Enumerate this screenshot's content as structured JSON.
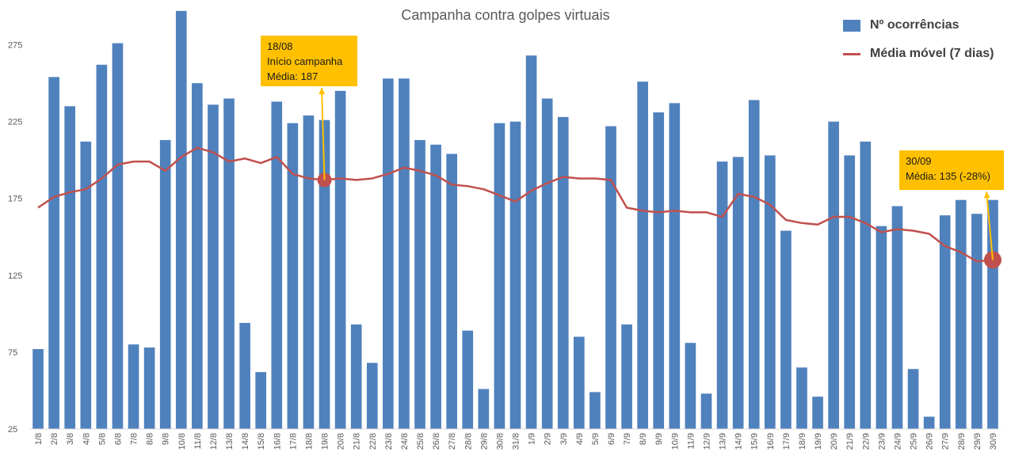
{
  "chart_data": {
    "type": "bar",
    "title": "Campanha contra golpes virtuais",
    "xlabel": "",
    "ylabel": "",
    "ylim": [
      25,
      300
    ],
    "yticks": [
      25,
      75,
      125,
      175,
      225,
      275
    ],
    "grid": false,
    "legend_position": "top-right",
    "categories": [
      "1/8",
      "2/8",
      "3/8",
      "4/8",
      "5/8",
      "6/8",
      "7/8",
      "8/8",
      "9/8",
      "10/8",
      "11/8",
      "12/8",
      "13/8",
      "14/8",
      "15/8",
      "16/8",
      "17/8",
      "18/8",
      "19/8",
      "20/8",
      "21/8",
      "22/8",
      "23/8",
      "24/8",
      "25/8",
      "26/8",
      "27/8",
      "28/8",
      "29/8",
      "30/8",
      "31/8",
      "1/9",
      "2/9",
      "3/9",
      "4/9",
      "5/9",
      "6/9",
      "7/9",
      "8/9",
      "9/9",
      "10/9",
      "11/9",
      "12/9",
      "13/9",
      "14/9",
      "15/9",
      "16/9",
      "17/9",
      "18/9",
      "19/9",
      "20/9",
      "21/9",
      "22/9",
      "23/9",
      "24/9",
      "25/9",
      "26/9",
      "27/9",
      "28/9",
      "29/9",
      "30/9"
    ],
    "series": [
      {
        "name": "Nº ocorrências",
        "type": "bar",
        "color": "#4f81bd",
        "values": [
          77,
          254,
          235,
          212,
          262,
          276,
          80,
          78,
          213,
          297,
          250,
          236,
          240,
          94,
          62,
          238,
          224,
          229,
          226,
          245,
          93,
          68,
          253,
          253,
          213,
          210,
          204,
          89,
          51,
          224,
          225,
          268,
          240,
          228,
          85,
          49,
          222,
          93,
          251,
          231,
          237,
          81,
          48,
          199,
          202,
          239,
          203,
          154,
          65,
          46,
          225,
          203,
          212,
          157,
          170,
          64,
          33,
          164,
          174,
          165,
          174
        ]
      },
      {
        "name": "Média móvel (7 dias)",
        "type": "line",
        "color": "#c0504d",
        "values": [
          169,
          176,
          179,
          181,
          188,
          197,
          199,
          199,
          193,
          202,
          208,
          205,
          199,
          201,
          198,
          202,
          191,
          188,
          187,
          188,
          187,
          188,
          191,
          195,
          193,
          190,
          184,
          183,
          181,
          177,
          173,
          180,
          185,
          189,
          188,
          188,
          187,
          169,
          167,
          166,
          167,
          166,
          166,
          163,
          178,
          176,
          171,
          161,
          159,
          158,
          163,
          163,
          159,
          153,
          155,
          154,
          152,
          144,
          140,
          134,
          135
        ]
      }
    ],
    "annotations": [
      {
        "x": "19/8",
        "y": 187,
        "lines": [
          "18/08",
          "Início campanha",
          "Média: 187"
        ]
      },
      {
        "x": "30/9",
        "y": 135,
        "lines": [
          "30/09",
          "Média: 135 (-28%)"
        ]
      }
    ],
    "colors": {
      "callout": "#ffc000",
      "marker": "#c0504d"
    }
  }
}
